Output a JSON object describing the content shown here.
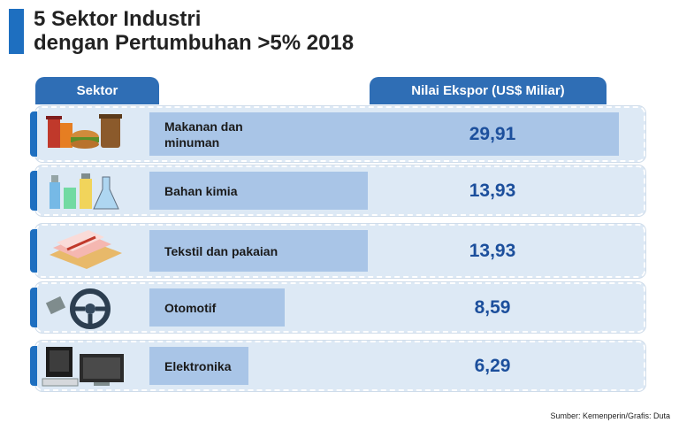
{
  "title_line1": "5 Sektor Industri",
  "title_line2": "dengan Pertumbuhan >5% 2018",
  "header_left": "Sektor",
  "header_right": "Nilai Ekspor (US$ Miliar)",
  "source": "Sumber: Kemenperin/Grafis: Duta",
  "colors": {
    "accent": "#1e6fc0",
    "bar": "#a9c5e7",
    "value_text": "#1c4f9c"
  },
  "chart_data": {
    "type": "bar",
    "title": "5 Sektor Industri dengan Pertumbuhan >5% 2018",
    "xlabel": "Sektor",
    "ylabel": "Nilai Ekspor (US$ Miliar)",
    "categories": [
      "Makanan dan minuman",
      "Bahan kimia",
      "Tekstil dan pakaian",
      "Otomotif",
      "Elektronika"
    ],
    "values": [
      29.91,
      13.93,
      13.93,
      8.59,
      6.29
    ],
    "value_labels": [
      "29,91",
      "13,93",
      "13,93",
      "8,59",
      "6,29"
    ],
    "icons": [
      "food-drink-icon",
      "chemical-icon",
      "textile-icon",
      "steering-wheel-icon",
      "computer-icon"
    ]
  }
}
